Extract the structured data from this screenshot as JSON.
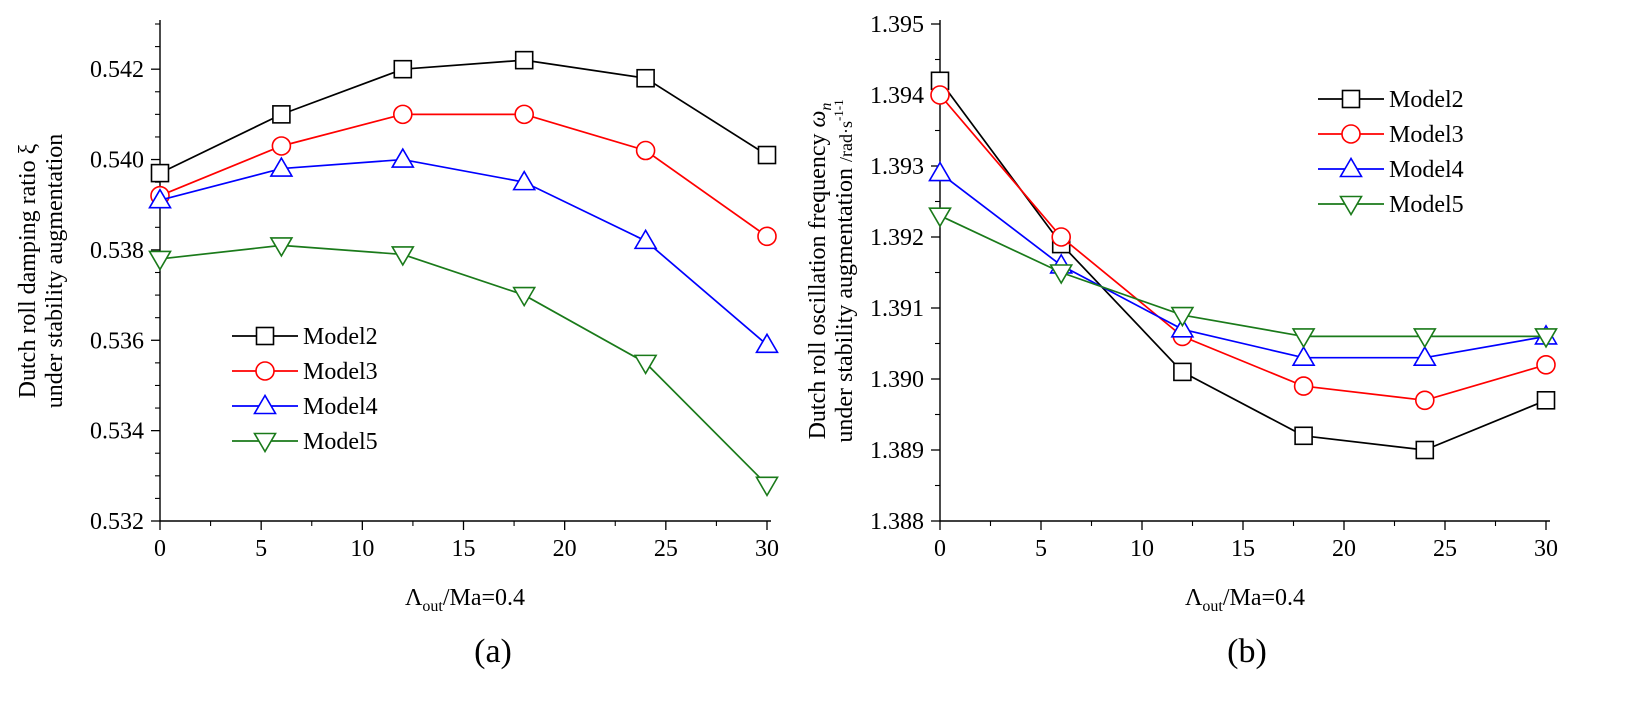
{
  "chart_data": [
    {
      "type": "line",
      "panel_label": "(a)",
      "title": "",
      "xlabel": {
        "main": "Λ",
        "sub": "out",
        "rest": "/Ma=0.4"
      },
      "ylabel_lines": [
        "Dutch roll damping ratio ξ",
        "under stability augmentation"
      ],
      "xlim": [
        0,
        30
      ],
      "ylim": [
        0.532,
        0.543
      ],
      "x": [
        0,
        6,
        12,
        18,
        24,
        30
      ],
      "xticks": [
        0,
        5,
        10,
        15,
        20,
        25,
        30
      ],
      "xtick_labels": [
        "0",
        "5",
        "10",
        "15",
        "20",
        "25",
        "30"
      ],
      "yticks": [
        0.532,
        0.534,
        0.536,
        0.538,
        0.54,
        0.542
      ],
      "ytick_labels": [
        "0.532",
        "0.534",
        "0.536",
        "0.538",
        "0.540",
        "0.542"
      ],
      "legend_position": "lower-left",
      "series": [
        {
          "name": "Model2",
          "color": "#000000",
          "marker": "square",
          "values": [
            0.5397,
            0.541,
            0.542,
            0.5422,
            0.5418,
            0.5401
          ]
        },
        {
          "name": "Model3",
          "color": "#ff0000",
          "marker": "circle",
          "values": [
            0.5392,
            0.5403,
            0.541,
            0.541,
            0.5402,
            0.5383
          ]
        },
        {
          "name": "Model4",
          "color": "#0000ff",
          "marker": "triangle-up",
          "values": [
            0.5391,
            0.5398,
            0.54,
            0.5395,
            0.5382,
            0.5359
          ]
        },
        {
          "name": "Model5",
          "color": "#1a7a1a",
          "marker": "triangle-down",
          "values": [
            0.5378,
            0.5381,
            0.5379,
            0.537,
            0.5355,
            0.5328
          ]
        }
      ]
    },
    {
      "type": "line",
      "panel_label": "(b)",
      "title": "",
      "xlabel": {
        "main": "Λ",
        "sub": "out",
        "rest": "/Ma=0.4"
      },
      "ylabel_line1": {
        "text": "Dutch roll oscillation frequency ",
        "symbol": "ω",
        "symbol_sub": "n"
      },
      "ylabel_line2": {
        "text": "under stability augmentation ",
        "unit": "/rad·s",
        "unit_sup": "-1-1"
      },
      "xlim": [
        0,
        30
      ],
      "ylim": [
        1.388,
        1.395
      ],
      "x": [
        0,
        6,
        12,
        18,
        24,
        30
      ],
      "xticks": [
        0,
        5,
        10,
        15,
        20,
        25,
        30
      ],
      "xtick_labels": [
        "0",
        "5",
        "10",
        "15",
        "20",
        "25",
        "30"
      ],
      "yticks": [
        1.388,
        1.389,
        1.39,
        1.391,
        1.392,
        1.393,
        1.394,
        1.395
      ],
      "ytick_labels": [
        "1.388",
        "1.389",
        "1.390",
        "1.391",
        "1.392",
        "1.393",
        "1.394",
        "1.395"
      ],
      "legend_position": "top-right",
      "series": [
        {
          "name": "Model2",
          "color": "#000000",
          "marker": "square",
          "values": [
            1.3942,
            1.3919,
            1.3901,
            1.3892,
            1.389,
            1.3897
          ]
        },
        {
          "name": "Model3",
          "color": "#ff0000",
          "marker": "circle",
          "values": [
            1.394,
            1.392,
            1.3906,
            1.3899,
            1.3897,
            1.3902
          ]
        },
        {
          "name": "Model4",
          "color": "#0000ff",
          "marker": "triangle-up",
          "values": [
            1.3929,
            1.3916,
            1.3907,
            1.3903,
            1.3903,
            1.3906
          ]
        },
        {
          "name": "Model5",
          "color": "#1a7a1a",
          "marker": "triangle-down",
          "values": [
            1.3923,
            1.3915,
            1.3909,
            1.3906,
            1.3906,
            1.3906
          ]
        }
      ]
    }
  ]
}
